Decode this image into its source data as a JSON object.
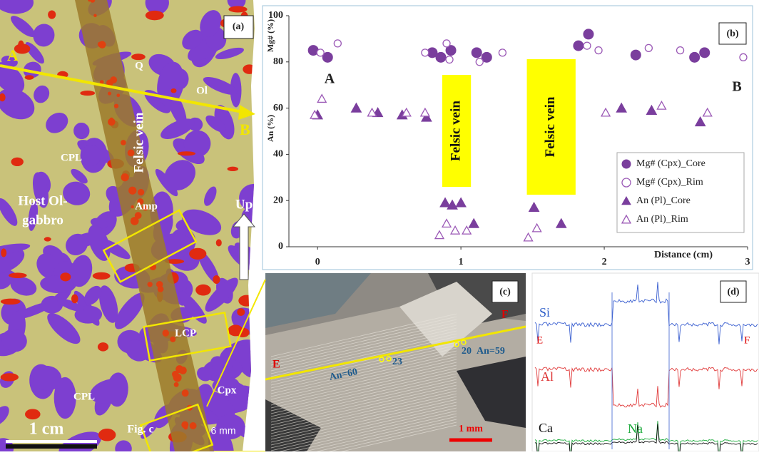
{
  "panel_a": {
    "label": "(a)",
    "start": "A",
    "end": "B",
    "texts": [
      "Q",
      "Ol",
      "Felsic vein",
      "CPL",
      "Host Ol-",
      "gabbro",
      "Amp",
      "Up",
      "LCP",
      "CPL",
      "Cpx",
      "Fig. c"
    ],
    "scale_bar": "1 cm",
    "width_label": "6 mm"
  },
  "chart_data": {
    "type": "scatter",
    "panel_label": "(b)",
    "ylabels": [
      "Mg# (%)",
      "An (%)"
    ],
    "xlabel": "Distance (cm)",
    "annotations": [
      "A",
      "B"
    ],
    "shaded_regions": [
      {
        "label": "Felsic vein",
        "x": [
          0.87,
          1.07
        ],
        "color": "#ffff00"
      },
      {
        "label": "Felsic vein",
        "x": [
          1.46,
          1.8
        ],
        "color": "#ffff00"
      }
    ],
    "xlim": [
      -0.2,
      3
    ],
    "ylim": [
      0,
      100
    ],
    "xticks": [
      0,
      1,
      2,
      3
    ],
    "yticks": [
      0,
      20,
      40,
      60,
      80,
      100
    ],
    "legend": "lower right",
    "series": [
      {
        "name": "Mg# (Cpx)_Core",
        "color": "#7a3e9d",
        "marker": "circle",
        "filled": true,
        "x": [
          -0.03,
          0.07,
          0.8,
          0.86,
          0.93,
          1.11,
          1.18,
          1.82,
          1.89,
          2.22,
          2.63,
          2.7
        ],
        "values": [
          85,
          82,
          84,
          82,
          85,
          84,
          82,
          87,
          92,
          83,
          82,
          84
        ]
      },
      {
        "name": "Mg# (Cpx)_Rim",
        "color": "#9b59b6",
        "marker": "circle",
        "filled": false,
        "x": [
          0.02,
          0.14,
          0.75,
          0.9,
          0.92,
          1.13,
          1.29,
          1.88,
          1.96,
          2.31,
          2.53,
          2.97
        ],
        "values": [
          84,
          88,
          84,
          88,
          81,
          80,
          84,
          87,
          85,
          86,
          85,
          82
        ]
      },
      {
        "name": "An (Pl)_Core",
        "color": "#7a3e9d",
        "marker": "triangle",
        "filled": true,
        "x": [
          0,
          0.27,
          0.42,
          0.59,
          0.76,
          0.89,
          0.94,
          1,
          1.09,
          1.51,
          1.7,
          2.12,
          2.33,
          2.67
        ],
        "values": [
          57,
          60,
          58,
          57,
          56,
          19,
          18,
          19,
          10,
          17,
          10,
          60,
          59,
          54
        ]
      },
      {
        "name": "An (Pl)_Rim",
        "color": "#9b59b6",
        "marker": "triangle",
        "filled": false,
        "x": [
          -0.02,
          0.03,
          0.38,
          0.62,
          0.75,
          0.85,
          0.9,
          0.96,
          1.04,
          1.47,
          1.53,
          2.01,
          2.4,
          2.72
        ],
        "values": [
          57,
          64,
          58,
          58,
          58,
          5,
          10,
          7,
          7,
          4,
          8,
          58,
          61,
          58
        ]
      }
    ]
  },
  "panel_c": {
    "label": "(c)",
    "start": "E",
    "end": "F",
    "texts": [
      "An=60",
      "23",
      "20",
      "An=59"
    ],
    "scale_bar": "1 mm"
  },
  "panel_d": {
    "label": "(d)",
    "start": "E",
    "end": "F",
    "elements": [
      "Si",
      "Al",
      "Ca",
      "Na"
    ]
  }
}
